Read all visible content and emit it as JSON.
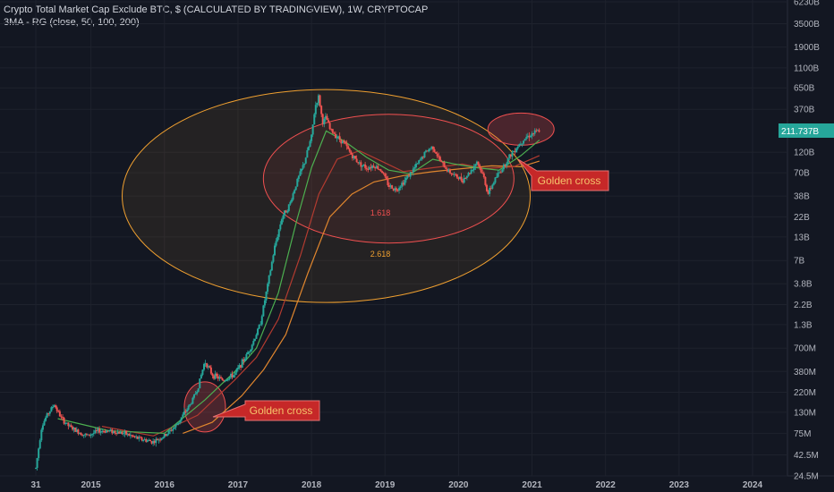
{
  "header": {
    "title": "Crypto Total Market Cap Exclude BTC, $ (CALCULATED BY TRADINGVIEW), 1W, CRYPTOCAP",
    "indicator": "3MA - RG (close, 50, 100, 200)"
  },
  "colors": {
    "background": "#131722",
    "up_candle": "#26a69a",
    "down_candle": "#ef5350",
    "ma50": "#4caf50",
    "ma100": "#b33b30",
    "ma200": "#e0862e",
    "fib_1618": "#f05050",
    "fib_2618": "#f0a030",
    "price_tag": "#26a69a",
    "callout_bg": "#c62828"
  },
  "annotations": {
    "fib_inner": "1.618",
    "fib_outer": "2.618",
    "callout_1": "Golden cross",
    "callout_2": "Golden cross"
  },
  "chart_data": {
    "type": "candlestick",
    "title": "Crypto Total Market Cap Exclude BTC, $ (CALCULATED BY TRADINGVIEW), 1W, CRYPTOCAP",
    "y_scale": "log",
    "y_ticks": [
      "6230B",
      "3500B",
      "1900B",
      "1100B",
      "650B",
      "370B",
      "120B",
      "70B",
      "38B",
      "22B",
      "13B",
      "7B",
      "3.8B",
      "2.2B",
      "1.3B",
      "700M",
      "380M",
      "220M",
      "130M",
      "75M",
      "42.5M",
      "24.5M"
    ],
    "y_tick_values": [
      6230,
      3500,
      1900,
      1100,
      650,
      370,
      120,
      70,
      38,
      22,
      13,
      7,
      3.8,
      2.2,
      1.3,
      0.7,
      0.38,
      0.22,
      0.13,
      0.075,
      0.0425,
      0.0245
    ],
    "y_unit": "B",
    "current_price_label": "211.737B",
    "current_price": 211.737,
    "x_ticks": [
      "31",
      "2015",
      "2016",
      "2017",
      "2018",
      "2019",
      "2020",
      "2021",
      "2022",
      "2023",
      "2024"
    ],
    "x_tick_years": [
      2014.0,
      2014.75,
      2015.75,
      2016.75,
      2017.75,
      2018.75,
      2019.75,
      2020.75,
      2021.75,
      2022.75,
      2023.75
    ],
    "price_path": [
      [
        2014.0,
        0.03
      ],
      [
        2014.08,
        0.09
      ],
      [
        2014.15,
        0.12
      ],
      [
        2014.25,
        0.16
      ],
      [
        2014.35,
        0.11
      ],
      [
        2014.45,
        0.09
      ],
      [
        2014.55,
        0.08
      ],
      [
        2014.7,
        0.07
      ],
      [
        2014.85,
        0.08
      ],
      [
        2015.0,
        0.08
      ],
      [
        2015.2,
        0.075
      ],
      [
        2015.4,
        0.065
      ],
      [
        2015.6,
        0.06
      ],
      [
        2015.75,
        0.07
      ],
      [
        2015.9,
        0.09
      ],
      [
        2016.0,
        0.12
      ],
      [
        2016.1,
        0.16
      ],
      [
        2016.2,
        0.24
      ],
      [
        2016.3,
        0.5
      ],
      [
        2016.4,
        0.35
      ],
      [
        2016.55,
        0.3
      ],
      [
        2016.7,
        0.35
      ],
      [
        2016.85,
        0.55
      ],
      [
        2016.95,
        0.8
      ],
      [
        2017.05,
        1.3
      ],
      [
        2017.15,
        3.5
      ],
      [
        2017.25,
        10
      ],
      [
        2017.35,
        22
      ],
      [
        2017.45,
        30
      ],
      [
        2017.55,
        55
      ],
      [
        2017.65,
        90
      ],
      [
        2017.75,
        180
      ],
      [
        2017.8,
        400
      ],
      [
        2017.85,
        520
      ],
      [
        2017.9,
        260
      ],
      [
        2017.95,
        300
      ],
      [
        2018.0,
        220
      ],
      [
        2018.1,
        180
      ],
      [
        2018.2,
        150
      ],
      [
        2018.3,
        110
      ],
      [
        2018.4,
        90
      ],
      [
        2018.5,
        80
      ],
      [
        2018.6,
        85
      ],
      [
        2018.7,
        75
      ],
      [
        2018.8,
        50
      ],
      [
        2018.9,
        45
      ],
      [
        2019.0,
        55
      ],
      [
        2019.1,
        70
      ],
      [
        2019.2,
        90
      ],
      [
        2019.3,
        120
      ],
      [
        2019.4,
        140
      ],
      [
        2019.5,
        95
      ],
      [
        2019.6,
        75
      ],
      [
        2019.7,
        65
      ],
      [
        2019.8,
        58
      ],
      [
        2019.9,
        70
      ],
      [
        2020.0,
        95
      ],
      [
        2020.1,
        60
      ],
      [
        2020.15,
        40
      ],
      [
        2020.25,
        60
      ],
      [
        2020.35,
        80
      ],
      [
        2020.45,
        110
      ],
      [
        2020.55,
        140
      ],
      [
        2020.65,
        175
      ],
      [
        2020.75,
        195
      ],
      [
        2020.85,
        211.737
      ]
    ],
    "ma50_path": [
      [
        2014.3,
        0.11
      ],
      [
        2015.0,
        0.08
      ],
      [
        2015.75,
        0.075
      ],
      [
        2016.3,
        0.18
      ],
      [
        2016.8,
        0.45
      ],
      [
        2017.0,
        0.7
      ],
      [
        2017.3,
        3
      ],
      [
        2017.55,
        20
      ],
      [
        2017.75,
        80
      ],
      [
        2017.95,
        210
      ],
      [
        2018.2,
        160
      ],
      [
        2018.5,
        105
      ],
      [
        2018.8,
        75
      ],
      [
        2019.1,
        68
      ],
      [
        2019.4,
        100
      ],
      [
        2019.7,
        88
      ],
      [
        2020.0,
        80
      ],
      [
        2020.3,
        75
      ],
      [
        2020.6,
        110
      ],
      [
        2020.85,
        165
      ]
    ],
    "ma100_path": [
      [
        2014.9,
        0.09
      ],
      [
        2015.6,
        0.07
      ],
      [
        2016.2,
        0.12
      ],
      [
        2016.7,
        0.3
      ],
      [
        2017.0,
        0.55
      ],
      [
        2017.3,
        1.5
      ],
      [
        2017.6,
        8
      ],
      [
        2017.85,
        40
      ],
      [
        2018.1,
        100
      ],
      [
        2018.4,
        125
      ],
      [
        2018.7,
        95
      ],
      [
        2019.0,
        72
      ],
      [
        2019.4,
        80
      ],
      [
        2019.8,
        88
      ],
      [
        2020.1,
        78
      ],
      [
        2020.5,
        82
      ],
      [
        2020.85,
        110
      ]
    ],
    "ma200_path": [
      [
        2016.0,
        0.075
      ],
      [
        2016.4,
        0.1
      ],
      [
        2016.8,
        0.2
      ],
      [
        2017.1,
        0.4
      ],
      [
        2017.4,
        1.0
      ],
      [
        2017.7,
        5
      ],
      [
        2018.0,
        22
      ],
      [
        2018.3,
        40
      ],
      [
        2018.6,
        55
      ],
      [
        2019.0,
        65
      ],
      [
        2019.4,
        72
      ],
      [
        2019.8,
        78
      ],
      [
        2020.2,
        84
      ],
      [
        2020.6,
        82
      ],
      [
        2020.85,
        95
      ]
    ]
  }
}
